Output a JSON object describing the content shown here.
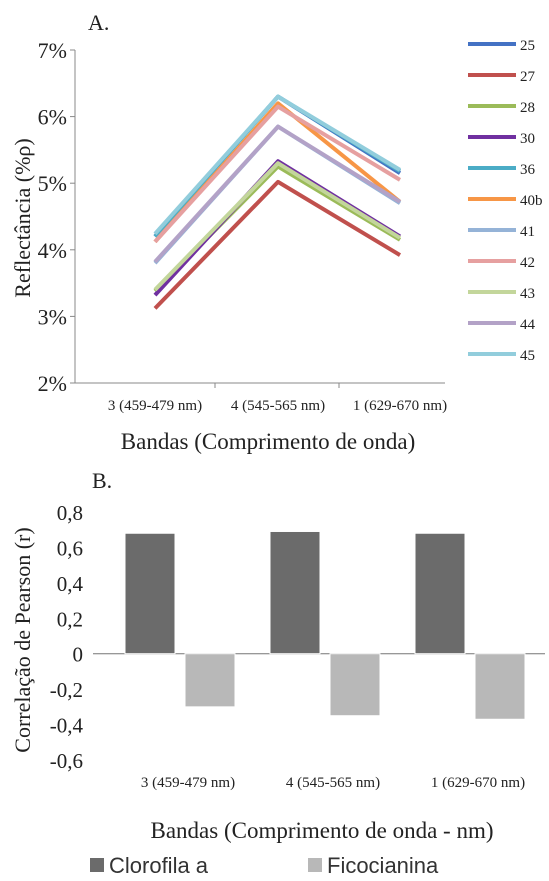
{
  "chart_data": [
    {
      "panel_label": "A.",
      "type": "line",
      "xlabel": "Bandas (Comprimento de onda)",
      "ylabel": "Reflectância (%ρ)",
      "categories": [
        "3 (459-479 nm)",
        "4 (545-565 nm)",
        "1 (629-670 nm)"
      ],
      "yticks": [
        "2%",
        "3%",
        "4%",
        "5%",
        "6%",
        "7%"
      ],
      "ylim": [
        2,
        7
      ],
      "legend_position": "right",
      "series": [
        {
          "name": "25",
          "color": "#4472c4",
          "values": [
            4.2,
            6.3,
            5.15
          ]
        },
        {
          "name": "27",
          "color": "#c0504d",
          "values": [
            3.12,
            5.02,
            3.92
          ]
        },
        {
          "name": "28",
          "color": "#9bbb59",
          "values": [
            3.38,
            5.25,
            4.15
          ]
        },
        {
          "name": "30",
          "color": "#7030a0",
          "values": [
            3.32,
            5.33,
            4.2
          ]
        },
        {
          "name": "36",
          "color": "#4bacc6",
          "values": [
            4.2,
            6.3,
            5.18
          ]
        },
        {
          "name": "40b",
          "color": "#f79646",
          "values": [
            4.12,
            6.2,
            4.72
          ]
        },
        {
          "name": "41",
          "color": "#95b3d7",
          "values": [
            3.8,
            5.85,
            4.7
          ]
        },
        {
          "name": "42",
          "color": "#e6a0a0",
          "values": [
            4.12,
            6.15,
            5.05
          ]
        },
        {
          "name": "43",
          "color": "#c3d69b",
          "values": [
            3.4,
            5.3,
            4.18
          ]
        },
        {
          "name": "44",
          "color": "#b3a2c7",
          "values": [
            3.82,
            5.85,
            4.72
          ]
        },
        {
          "name": "45",
          "color": "#92cddc",
          "values": [
            4.24,
            6.3,
            5.2
          ]
        }
      ]
    },
    {
      "panel_label": "B.",
      "type": "bar",
      "xlabel": "Bandas (Comprimento de onda - nm)",
      "ylabel": "Correlação de Pearson (r)",
      "categories": [
        "3 (459-479 nm)",
        "4 (545-565 nm)",
        "1 (629-670 nm)"
      ],
      "yticks": [
        "-0,6",
        "-0,4",
        "-0,2",
        "0",
        "0,2",
        "0,4",
        "0,6",
        "0,8"
      ],
      "ylim": [
        -0.6,
        0.8
      ],
      "legend_position": "bottom",
      "series": [
        {
          "name": "Clorofila a",
          "color": "#6b6b6b",
          "values": [
            0.68,
            0.69,
            0.68
          ]
        },
        {
          "name": "Ficocianina",
          "color": "#b8b8b8",
          "values": [
            -0.3,
            -0.35,
            -0.37
          ]
        }
      ]
    }
  ]
}
